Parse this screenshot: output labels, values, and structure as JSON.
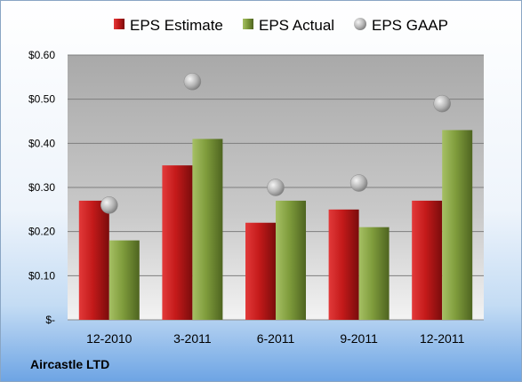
{
  "chart_data": {
    "type": "bar",
    "categories": [
      "12-2010",
      "3-2011",
      "6-2011",
      "9-2011",
      "12-2011"
    ],
    "series": [
      {
        "name": "EPS Estimate",
        "kind": "bar",
        "color": "#cc1f1f",
        "values": [
          0.27,
          0.35,
          0.22,
          0.25,
          0.27
        ]
      },
      {
        "name": "EPS Actual",
        "kind": "bar",
        "color": "#7a9a3a",
        "values": [
          0.18,
          0.41,
          0.27,
          0.21,
          0.43
        ]
      },
      {
        "name": "EPS GAAP",
        "kind": "scatter",
        "color": "#a8a8a8",
        "values": [
          0.26,
          0.54,
          0.3,
          0.31,
          0.49
        ]
      }
    ],
    "y_ticks": [
      {
        "value": 0.0,
        "label": "$-"
      },
      {
        "value": 0.1,
        "label": "$0.10"
      },
      {
        "value": 0.2,
        "label": "$0.20"
      },
      {
        "value": 0.3,
        "label": "$0.30"
      },
      {
        "value": 0.4,
        "label": "$0.40"
      },
      {
        "value": 0.5,
        "label": "$0.50"
      },
      {
        "value": 0.6,
        "label": "$0.60"
      }
    ],
    "ylim": [
      0,
      0.6
    ],
    "grid": true,
    "legend_position": "top"
  },
  "company_name": "Aircastle LTD"
}
